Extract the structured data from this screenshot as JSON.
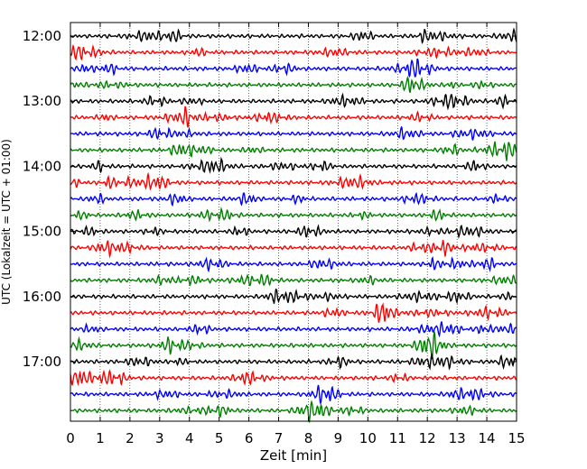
{
  "chart_data": {
    "type": "line",
    "title": "",
    "xlabel": "Zeit  [min]",
    "ylabel": "UTC (Lokalzeit = UTC + 01:00)",
    "xlim": [
      0,
      15
    ],
    "x_ticks": [
      "0",
      "1",
      "2",
      "3",
      "4",
      "5",
      "6",
      "7",
      "8",
      "9",
      "10",
      "11",
      "12",
      "13",
      "14",
      "15"
    ],
    "y_ticks": [
      "12:00",
      "13:00",
      "14:00",
      "15:00",
      "16:00",
      "17:00"
    ],
    "grid": "vertical-dotted",
    "trace_interval_minutes": 15,
    "trace_colors": [
      "#000000",
      "#ff0000",
      "#0000ff",
      "#007f00"
    ],
    "traces": [
      {
        "start": "12:00",
        "color": "#000000"
      },
      {
        "start": "12:15",
        "color": "#ff0000"
      },
      {
        "start": "12:30",
        "color": "#0000ff"
      },
      {
        "start": "12:45",
        "color": "#007f00"
      },
      {
        "start": "13:00",
        "color": "#000000"
      },
      {
        "start": "13:15",
        "color": "#ff0000"
      },
      {
        "start": "13:30",
        "color": "#0000ff"
      },
      {
        "start": "13:45",
        "color": "#007f00"
      },
      {
        "start": "14:00",
        "color": "#000000"
      },
      {
        "start": "14:15",
        "color": "#ff0000"
      },
      {
        "start": "14:30",
        "color": "#0000ff"
      },
      {
        "start": "14:45",
        "color": "#007f00"
      },
      {
        "start": "15:00",
        "color": "#000000"
      },
      {
        "start": "15:15",
        "color": "#ff0000"
      },
      {
        "start": "15:30",
        "color": "#0000ff"
      },
      {
        "start": "15:45",
        "color": "#007f00"
      },
      {
        "start": "16:00",
        "color": "#000000"
      },
      {
        "start": "16:15",
        "color": "#ff0000"
      },
      {
        "start": "16:30",
        "color": "#0000ff"
      },
      {
        "start": "16:45",
        "color": "#007f00"
      },
      {
        "start": "17:00",
        "color": "#000000"
      },
      {
        "start": "17:15",
        "color": "#ff0000"
      },
      {
        "start": "17:30",
        "color": "#0000ff"
      },
      {
        "start": "17:45",
        "color": "#007f00"
      }
    ]
  }
}
